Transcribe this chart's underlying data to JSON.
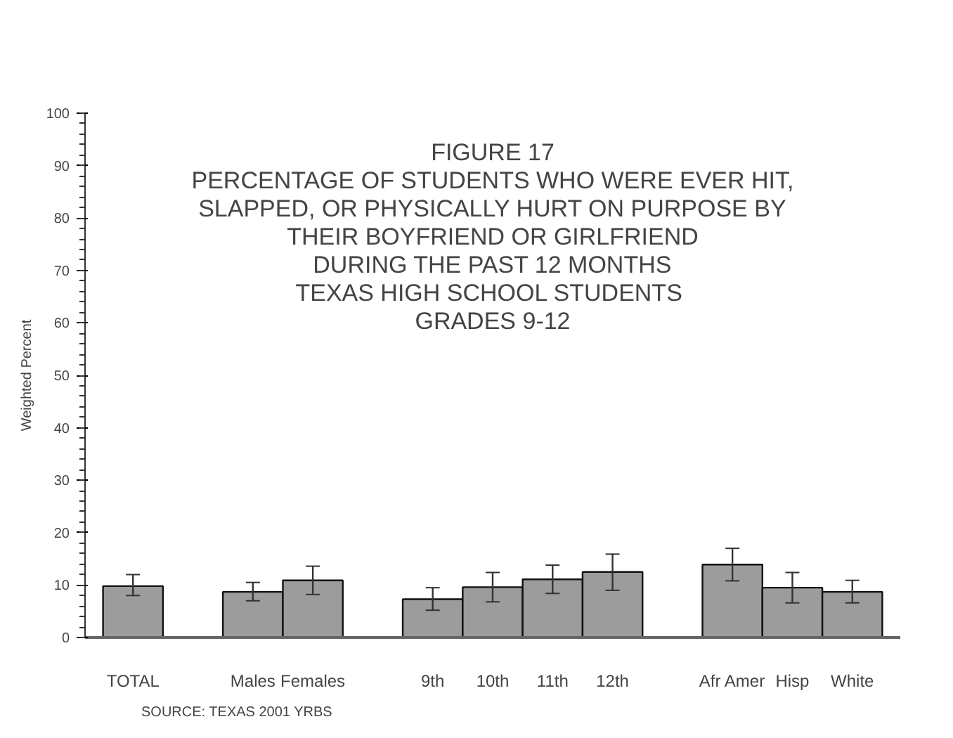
{
  "chart_data": {
    "type": "bar",
    "title": "FIGURE 17\nPERCENTAGE OF STUDENTS WHO WERE EVER HIT,\nSLAPPED, OR PHYSICALLY HURT ON PURPOSE BY\nTHEIR BOYFRIEND OR GIRLFRIEND\nDURING THE PAST 12 MONTHS\nTEXAS HIGH  SCHOOL STUDENTS\nGRADES 9-12",
    "ylabel": "Weighted Percent",
    "categories": [
      "TOTAL",
      null,
      "Males",
      "Females",
      null,
      "9th",
      "10th",
      "11th",
      "12th",
      null,
      "Afr Amer",
      "Hisp",
      "White"
    ],
    "values": [
      9.8,
      null,
      8.7,
      10.9,
      null,
      7.3,
      9.6,
      11.1,
      12.5,
      null,
      13.9,
      9.5,
      8.7
    ],
    "errors": [
      [
        8.0,
        12.0
      ],
      null,
      [
        7.0,
        10.5
      ],
      [
        8.2,
        13.6
      ],
      null,
      [
        5.2,
        9.5
      ],
      [
        6.8,
        12.4
      ],
      [
        8.4,
        13.8
      ],
      [
        9.0,
        15.9
      ],
      null,
      [
        10.8,
        17.0
      ],
      [
        6.6,
        12.4
      ],
      [
        6.6,
        10.9
      ]
    ],
    "color": "#9c9c9c",
    "ylim": [
      0,
      100
    ],
    "yticks": [
      0,
      10,
      20,
      30,
      40,
      50,
      60,
      70,
      80,
      90,
      100
    ],
    "grid": false,
    "annotations": [
      "SOURCE: TEXAS 2001 YRBS"
    ]
  }
}
